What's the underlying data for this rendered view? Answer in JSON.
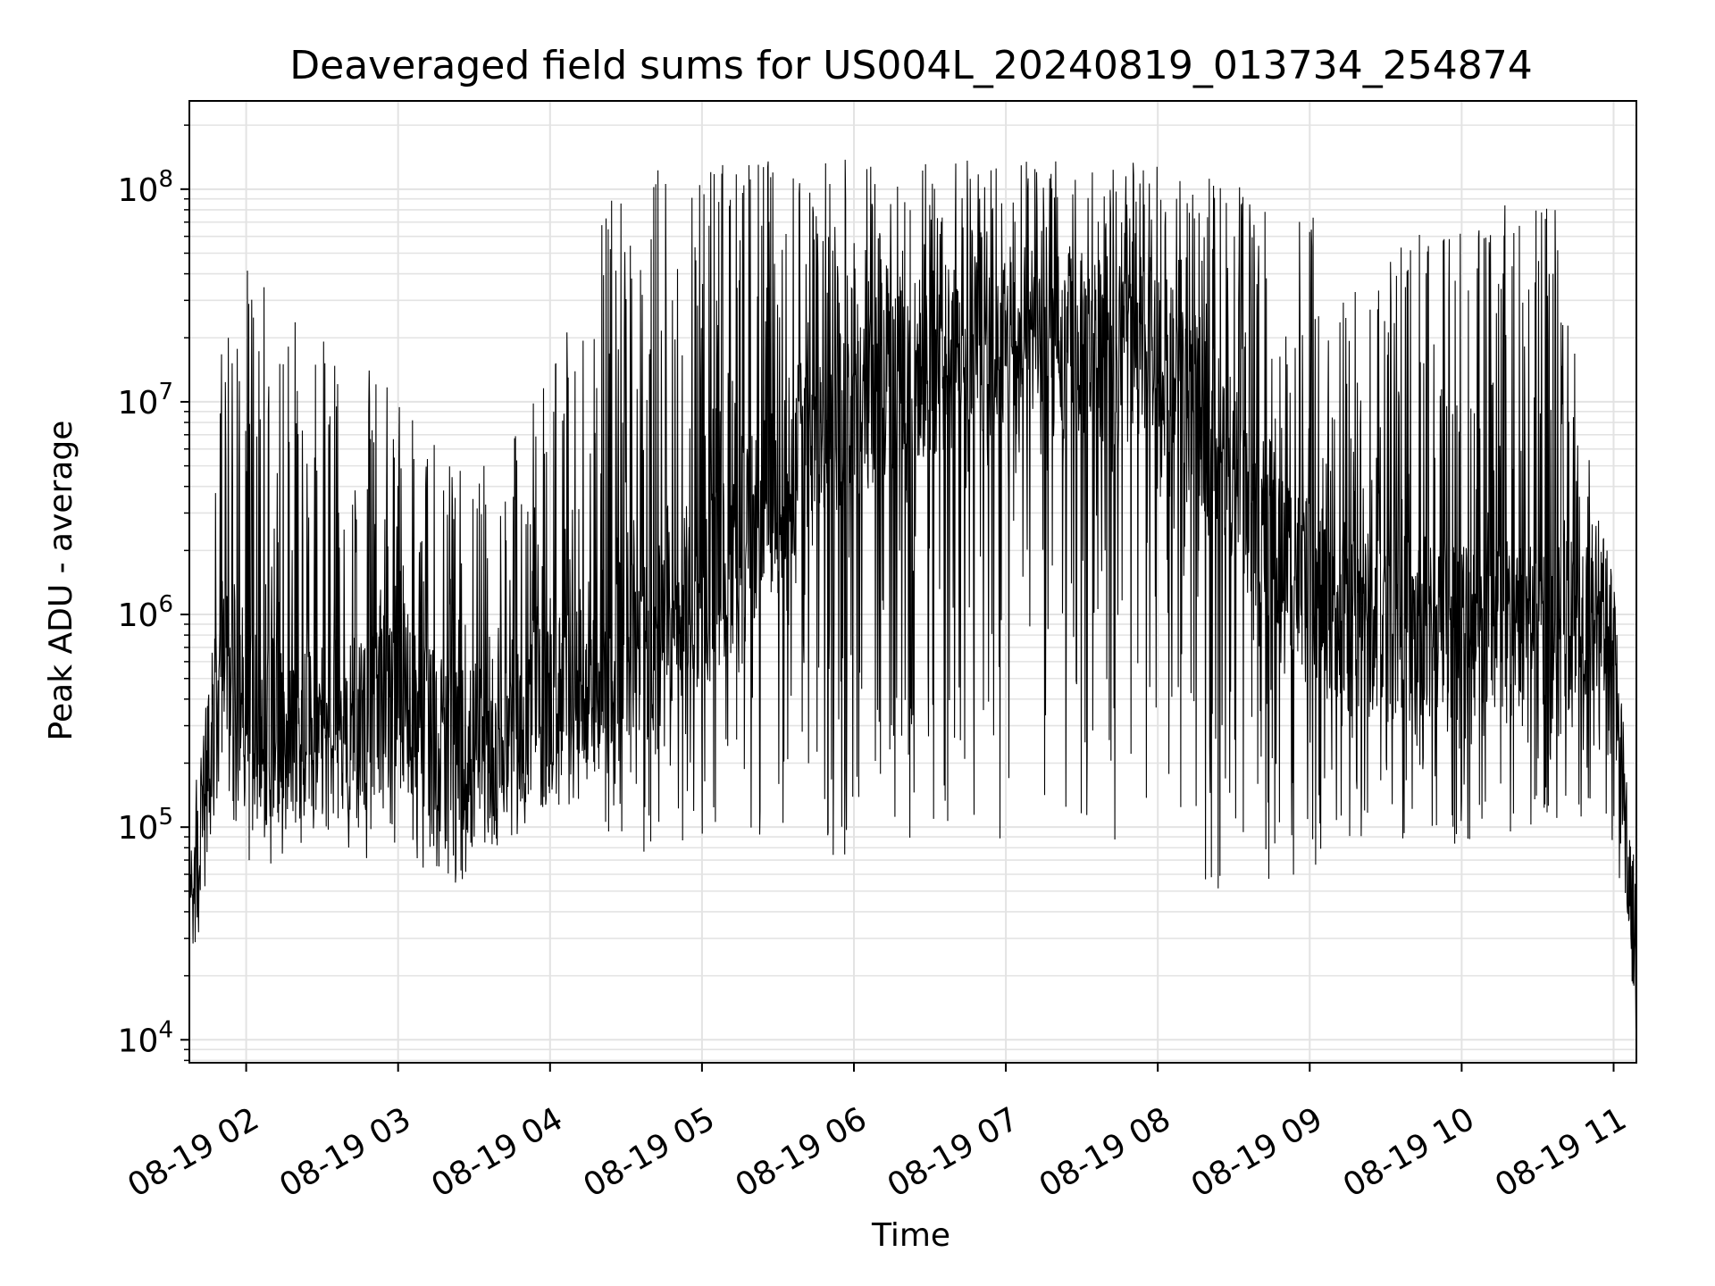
{
  "chart_data": {
    "type": "line",
    "title": "Deaveraged field sums for US004L_20240819_013734_254874",
    "xlabel": "Time",
    "ylabel": "Peak ADU - average",
    "yscale": "log",
    "ylim": [
      7800,
      260000000
    ],
    "xlim": [
      "2024-08-19 01:37:34",
      "2024-08-19 11:09:00"
    ],
    "grid": true,
    "line_color": "#000000",
    "x_ticks": [
      {
        "t": "2024-08-19 02:00",
        "label": "08-19 02"
      },
      {
        "t": "2024-08-19 03:00",
        "label": "08-19 03"
      },
      {
        "t": "2024-08-19 04:00",
        "label": "08-19 04"
      },
      {
        "t": "2024-08-19 05:00",
        "label": "08-19 05"
      },
      {
        "t": "2024-08-19 06:00",
        "label": "08-19 06"
      },
      {
        "t": "2024-08-19 07:00",
        "label": "08-19 07"
      },
      {
        "t": "2024-08-19 08:00",
        "label": "08-19 08"
      },
      {
        "t": "2024-08-19 09:00",
        "label": "08-19 09"
      },
      {
        "t": "2024-08-19 10:00",
        "label": "08-19 10"
      },
      {
        "t": "2024-08-19 11:00",
        "label": "08-19 11"
      }
    ],
    "y_ticks": [
      {
        "v": 10000,
        "base": "10",
        "exp": "4"
      },
      {
        "v": 100000,
        "base": "10",
        "exp": "5"
      },
      {
        "v": 1000000,
        "base": "10",
        "exp": "6"
      },
      {
        "v": 10000000,
        "base": "10",
        "exp": "7"
      },
      {
        "v": 100000000,
        "base": "10",
        "exp": "8"
      }
    ],
    "envelope": {
      "x": [
        "2024-08-19 01:40",
        "2024-08-19 01:45",
        "2024-08-19 01:50",
        "2024-08-19 02:00",
        "2024-08-19 02:30",
        "2024-08-19 03:00",
        "2024-08-19 03:20",
        "2024-08-19 03:40",
        "2024-08-19 04:00",
        "2024-08-19 04:20",
        "2024-08-19 04:40",
        "2024-08-19 05:00",
        "2024-08-19 05:20",
        "2024-08-19 05:40",
        "2024-08-19 06:00",
        "2024-08-19 06:30",
        "2024-08-19 07:00",
        "2024-08-19 07:30",
        "2024-08-19 08:00",
        "2024-08-19 08:20",
        "2024-08-19 08:40",
        "2024-08-19 09:00",
        "2024-08-19 09:20",
        "2024-08-19 09:40",
        "2024-08-19 10:00",
        "2024-08-19 10:20",
        "2024-08-19 10:40",
        "2024-08-19 10:55",
        "2024-08-19 11:00",
        "2024-08-19 11:05",
        "2024-08-19 11:09"
      ],
      "baseline": [
        60000,
        150000,
        700000,
        300000,
        250000,
        450000,
        200000,
        250000,
        350000,
        600000,
        800000,
        1200000,
        2500000,
        6000000,
        10000000,
        15000000,
        20000000,
        18000000,
        15000000,
        8000000,
        3000000,
        1200000,
        900000,
        850000,
        900000,
        950000,
        1000000,
        1000000,
        600000,
        80000,
        20000
      ],
      "high": [
        100000,
        500000,
        20000000,
        45000000,
        20000000,
        12000000,
        5000000,
        5000000,
        15000000,
        80000000,
        130000000,
        140000000,
        140000000,
        140000000,
        140000000,
        140000000,
        140000000,
        140000000,
        130000000,
        120000000,
        100000000,
        80000000,
        40000000,
        60000000,
        80000000,
        100000000,
        80000000,
        3000000,
        1500000,
        150000,
        50000
      ],
      "low": [
        40000,
        60000,
        150000,
        70000,
        60000,
        80000,
        50000,
        80000,
        120000,
        100000,
        70000,
        90000,
        80000,
        70000,
        60000,
        80000,
        80000,
        90000,
        80000,
        50000,
        50000,
        60000,
        80000,
        90000,
        80000,
        70000,
        80000,
        150000,
        80000,
        30000,
        10000
      ]
    }
  }
}
